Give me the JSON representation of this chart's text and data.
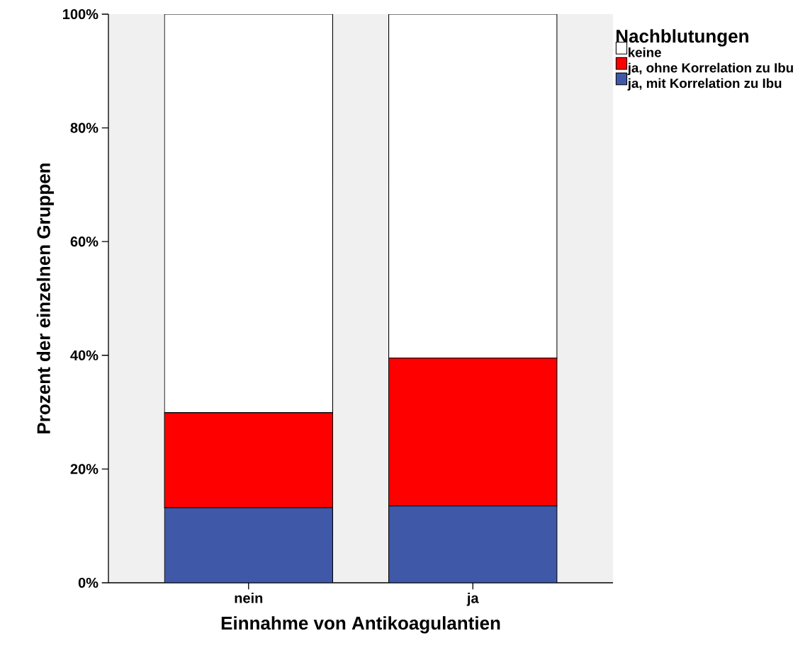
{
  "chart_data": {
    "type": "bar",
    "stacked": true,
    "xlabel": "Einnahme von Antikoagulantien",
    "ylabel": "Prozent der einzelnen Gruppen",
    "legend_title": "Nachblutungen",
    "legend": "right",
    "grid": false,
    "categories": [
      "nein",
      "ja"
    ],
    "ylim": [
      0,
      100
    ],
    "yticks": [
      {
        "value": 0,
        "label": "0%"
      },
      {
        "value": 20,
        "label": "20%"
      },
      {
        "value": 40,
        "label": "40%"
      },
      {
        "value": 60,
        "label": "60%"
      },
      {
        "value": 80,
        "label": "80%"
      },
      {
        "value": 100,
        "label": "100%"
      }
    ],
    "series": [
      {
        "name": "ja, mit Korrelation zu Ibu",
        "color": "#3f58a8",
        "values": [
          13.2,
          13.5
        ]
      },
      {
        "name": "ja, ohne Korrelation zu Ibu",
        "color": "#ff0000",
        "values": [
          16.7,
          26.0
        ]
      },
      {
        "name": "keine",
        "color": "#ffffff",
        "values": [
          70.1,
          60.5
        ]
      }
    ]
  }
}
